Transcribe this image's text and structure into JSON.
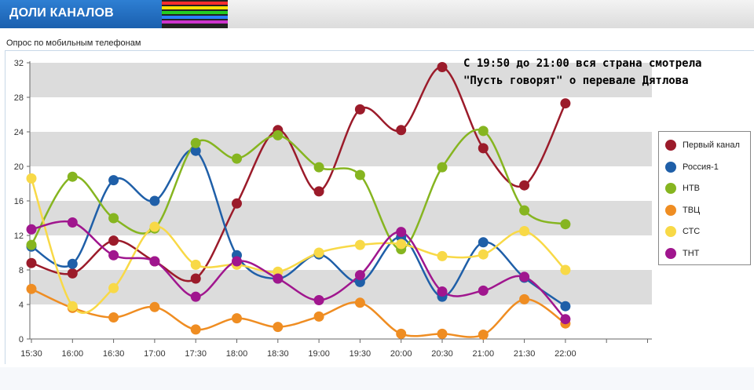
{
  "header": {
    "title": "ДОЛИ КАНАЛОВ",
    "stripe_colors": [
      "#ff2d2d",
      "#ffe100",
      "#22cc22",
      "#2a7fff",
      "#cc33cc"
    ]
  },
  "subtitle": "Опрос по мобильным телефонам",
  "annotation": {
    "line1": "С 19:50 до 21:00 вся страна смотрела",
    "line2": "\"Пусть говорят\" о перевале Дятлова"
  },
  "chart_data": {
    "type": "line",
    "title": "",
    "xlabel": "",
    "ylabel": "",
    "ylim": [
      0,
      32
    ],
    "yticks": [
      0,
      4,
      8,
      12,
      16,
      20,
      24,
      28,
      32
    ],
    "categories": [
      "15:30",
      "16:00",
      "16:30",
      "17:00",
      "17:30",
      "18:00",
      "18:30",
      "19:00",
      "19:30",
      "20:00",
      "20:30",
      "21:00",
      "21:30",
      "22:00"
    ],
    "legend_position": "right",
    "grid": "alternating horizontal bands",
    "series": [
      {
        "name": "Первый канал",
        "color": "#9b1b2a",
        "values": [
          8.8,
          7.6,
          11.4,
          9.0,
          7.0,
          15.7,
          24.2,
          17.1,
          26.6,
          24.2,
          31.5,
          22.1,
          17.8,
          27.3
        ]
      },
      {
        "name": "Россия-1",
        "color": "#1f5fa8",
        "values": [
          10.7,
          8.7,
          18.4,
          16.0,
          21.8,
          9.7,
          7.0,
          9.8,
          6.6,
          11.8,
          4.9,
          11.2,
          7.1,
          3.8
        ]
      },
      {
        "name": "НТВ",
        "color": "#86b520",
        "values": [
          10.9,
          18.8,
          14.0,
          12.8,
          22.7,
          20.9,
          23.6,
          19.9,
          19.0,
          10.4,
          19.9,
          24.1,
          14.9,
          13.3
        ]
      },
      {
        "name": "ТВЦ",
        "color": "#ef8d22",
        "values": [
          5.8,
          3.6,
          2.5,
          3.7,
          1.1,
          2.4,
          1.4,
          2.6,
          4.2,
          0.6,
          0.6,
          0.5,
          4.6,
          1.8
        ]
      },
      {
        "name": "СТС",
        "color": "#f8d947",
        "values": [
          18.6,
          3.8,
          5.9,
          13.0,
          8.6,
          8.6,
          7.8,
          10.0,
          10.9,
          11.0,
          9.6,
          9.8,
          12.5,
          8.0
        ]
      },
      {
        "name": "ТНТ",
        "color": "#a0168e",
        "values": [
          12.7,
          13.5,
          9.7,
          9.0,
          4.9,
          9.0,
          7.0,
          4.5,
          7.4,
          12.4,
          5.5,
          5.6,
          7.2,
          2.3
        ]
      }
    ]
  }
}
